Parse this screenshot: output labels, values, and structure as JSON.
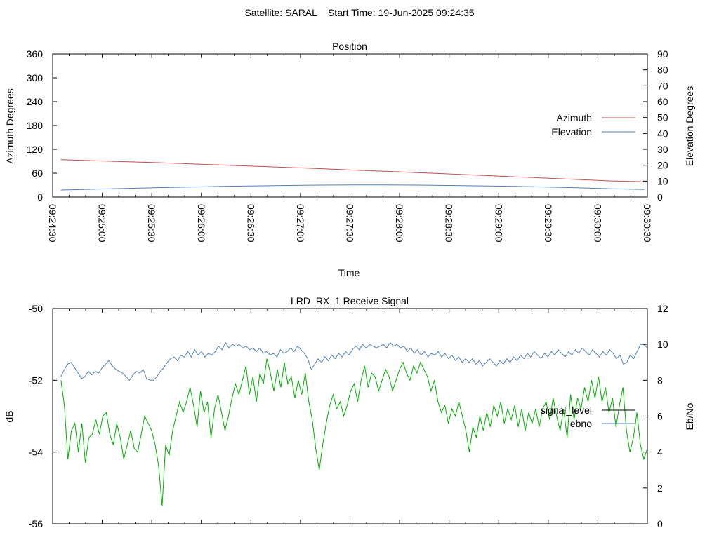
{
  "header": {
    "title": "Satellite: SARAL    Start Time: 19-Jun-2025 09:24:35"
  },
  "chart_data": [
    {
      "type": "line",
      "title": "Position",
      "xlabel": "Time",
      "ylabel": "Azimuth Degrees",
      "y2label": "Elevation Degrees",
      "xlim": [
        "09:24:30",
        "09:30:30"
      ],
      "ylim": [
        0,
        360
      ],
      "y2lim": [
        0,
        90
      ],
      "x_ticks": [
        "09:24:30",
        "09:25:00",
        "09:25:30",
        "09:26:00",
        "09:26:30",
        "09:27:00",
        "09:27:30",
        "09:28:00",
        "09:28:30",
        "09:29:00",
        "09:29:30",
        "09:30:00",
        "09:30:30"
      ],
      "y_ticks": [
        0,
        60,
        120,
        180,
        240,
        300,
        360
      ],
      "y2_ticks": [
        0,
        10,
        20,
        30,
        40,
        50,
        60,
        70,
        80,
        90
      ],
      "legend_position": "right",
      "grid": false,
      "series": [
        {
          "name": "Azimuth",
          "axis": "y",
          "color": "#c0504d",
          "t_start": "09:24:35",
          "t_end": "09:30:28",
          "values": [
            94,
            91.5,
            89,
            86.5,
            83.5,
            80.5,
            77.5,
            74.5,
            71.5,
            68,
            65,
            61.5,
            58,
            54.5,
            51,
            47.5,
            44,
            40.5,
            38.5
          ]
        },
        {
          "name": "Elevation",
          "axis": "y2",
          "color": "#4f81bd",
          "t_start": "09:24:35",
          "t_end": "09:30:28",
          "values": [
            4.4,
            4.9,
            5.4,
            5.9,
            6.3,
            6.7,
            7.0,
            7.3,
            7.5,
            7.6,
            7.6,
            7.5,
            7.3,
            7.0,
            6.7,
            6.3,
            5.8,
            5.2,
            4.7
          ]
        }
      ]
    },
    {
      "type": "line",
      "title": "LRD_RX_1 Receive Signal",
      "ylabel": "dB",
      "y2label": "Eb/No",
      "ylim": [
        -56,
        -50
      ],
      "y2lim": [
        0,
        12
      ],
      "y_ticks": [
        -56,
        -54,
        -52,
        -50
      ],
      "y2_ticks": [
        0,
        2,
        4,
        6,
        8,
        10,
        12
      ],
      "legend_position": "right",
      "grid": false,
      "series": [
        {
          "name": "signal_level",
          "axis": "y",
          "color": "#00b000",
          "t_start": "09:24:35",
          "t_end": "09:30:30",
          "values": [
            -52,
            -52.7,
            -54.2,
            -53.4,
            -53.2,
            -54,
            -53.2,
            -54.3,
            -53.6,
            -53.5,
            -53.1,
            -53.5,
            -53.0,
            -52.9,
            -53.5,
            -53.8,
            -53.2,
            -53.6,
            -54.2,
            -53.8,
            -53.4,
            -53.9,
            -54.0,
            -53.5,
            -53.0,
            -53.2,
            -53.4,
            -53.8,
            -54.4,
            -55.5,
            -53.8,
            -54.1,
            -53.4,
            -53.0,
            -52.6,
            -52.9,
            -52.6,
            -52.2,
            -52.7,
            -53.3,
            -52.3,
            -52.9,
            -52.6,
            -53.6,
            -52.8,
            -52.4,
            -52.9,
            -53.4,
            -53.0,
            -52.5,
            -52.1,
            -52.4,
            -52.0,
            -51.6,
            -52.4,
            -51.9,
            -52.6,
            -51.8,
            -52.1,
            -51.4,
            -51.8,
            -52.3,
            -51.7,
            -52.2,
            -51.5,
            -52.1,
            -51.9,
            -52.5,
            -52.0,
            -52.4,
            -51.8,
            -52.6,
            -53.1,
            -53.9,
            -54.5,
            -53.8,
            -53.2,
            -52.7,
            -52.4,
            -52.8,
            -52.6,
            -53.0,
            -52.7,
            -52.3,
            -52.1,
            -52.6,
            -52.0,
            -51.6,
            -52.2,
            -51.8,
            -51.9,
            -52.3,
            -52.0,
            -51.7,
            -51.9,
            -52.3,
            -52.0,
            -51.7,
            -51.5,
            -51.8,
            -52.0,
            -51.6,
            -51.8,
            -51.5,
            -51.7,
            -51.9,
            -52.3,
            -52.0,
            -52.6,
            -52.9,
            -52.7,
            -53.2,
            -52.8,
            -53.0,
            -52.6,
            -53.0,
            -53.4,
            -54.0,
            -53.3,
            -53.6,
            -53.0,
            -53.4,
            -52.9,
            -53.3,
            -52.7,
            -53.0,
            -52.6,
            -53.2,
            -52.8,
            -53.1,
            -52.7,
            -53.3,
            -52.8,
            -53.4,
            -52.9,
            -53.2,
            -52.8,
            -53.3,
            -52.8,
            -52.6,
            -53.1,
            -52.5,
            -53.0,
            -53.4,
            -52.8,
            -53.6,
            -52.4,
            -53.1,
            -52.5,
            -52.8,
            -52.2,
            -52.6,
            -52.0,
            -52.5,
            -51.9,
            -52.6,
            -52.2,
            -52.9,
            -52.5,
            -53.3,
            -52.7,
            -52.2,
            -53.4,
            -54.0,
            -53.6,
            -52.9,
            -53.8,
            -54.2,
            -53.9
          ]
        },
        {
          "name": "ebno",
          "axis": "y2",
          "color": "#4f81bd",
          "t_start": "09:24:35",
          "t_end": "09:30:30",
          "values": [
            8.2,
            8.6,
            8.9,
            9.0,
            8.7,
            8.4,
            8.1,
            8.2,
            8.5,
            8.3,
            8.5,
            8.4,
            8.7,
            8.9,
            9.1,
            8.8,
            8.6,
            8.5,
            8.4,
            8.2,
            8.0,
            8.3,
            8.5,
            8.4,
            8.6,
            8.1,
            8.0,
            8.0,
            8.2,
            8.5,
            8.7,
            9.0,
            9.2,
            9.3,
            9.1,
            9.4,
            9.3,
            9.6,
            9.3,
            9.7,
            9.4,
            9.6,
            9.3,
            9.5,
            9.4,
            9.6,
            9.9,
            9.7,
            10.1,
            9.8,
            10.0,
            9.9,
            10.0,
            9.8,
            9.9,
            9.7,
            9.8,
            9.6,
            9.8,
            9.5,
            9.6,
            9.4,
            9.5,
            9.3,
            9.7,
            9.5,
            9.6,
            9.8,
            9.6,
            9.9,
            9.7,
            9.5,
            9.2,
            8.6,
            8.9,
            9.2,
            9.0,
            9.3,
            9.1,
            9.4,
            9.2,
            9.5,
            9.3,
            9.6,
            9.4,
            9.7,
            9.9,
            9.7,
            10.0,
            9.8,
            10.0,
            9.9,
            9.8,
            9.9,
            10.0,
            9.8,
            10.1,
            9.9,
            10.0,
            9.8,
            9.9,
            9.6,
            9.8,
            9.5,
            9.7,
            9.4,
            9.6,
            9.3,
            9.5,
            9.4,
            9.6,
            9.3,
            9.5,
            9.2,
            9.4,
            9.1,
            9.3,
            9.0,
            9.2,
            9.0,
            9.2,
            8.9,
            9.1,
            8.8,
            9.0,
            9.2,
            9.0,
            8.8,
            9.1,
            8.9,
            9.2,
            9.0,
            9.3,
            9.1,
            9.4,
            9.2,
            9.5,
            9.3,
            9.6,
            9.4,
            9.2,
            9.5,
            9.3,
            9.6,
            9.4,
            9.7,
            9.5,
            9.3,
            9.6,
            9.4,
            9.7,
            9.5,
            9.8,
            9.6,
            9.4,
            9.7,
            9.5,
            9.3,
            9.6,
            9.4,
            9.7,
            9.5,
            9.2,
            9.4,
            8.9,
            9.0,
            9.4,
            9.2,
            9.6,
            10.0,
            10.0,
            9.8
          ]
        }
      ]
    }
  ]
}
